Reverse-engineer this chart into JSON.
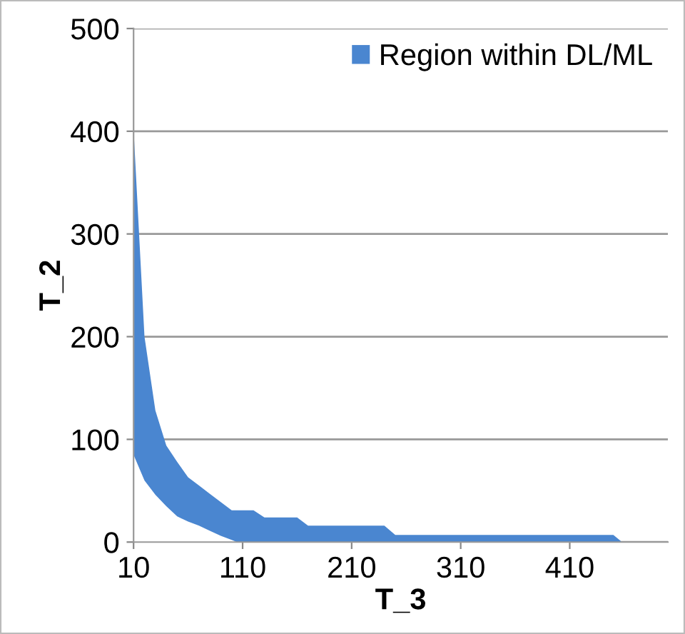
{
  "chart_data": {
    "type": "area",
    "stacked": true,
    "xlabel": "T_3",
    "ylabel": "T_2",
    "x": [
      10,
      20,
      30,
      40,
      50,
      60,
      70,
      80,
      90,
      100,
      105,
      110,
      120,
      130,
      160,
      170,
      240,
      250,
      450,
      458
    ],
    "series": [
      {
        "color": "#ffffff",
        "values": [
          85,
          60,
          46,
          35,
          25,
          20,
          16,
          11,
          6,
          2,
          0,
          0,
          0,
          0,
          0,
          0,
          0,
          0,
          0,
          0
        ]
      },
      {
        "name": "Region within DL/ML",
        "color": "#4a86d0",
        "values": [
          317,
          140,
          82,
          59,
          53,
          43,
          39,
          36,
          33,
          29,
          31,
          31,
          31,
          24,
          24,
          16,
          16,
          7,
          7,
          0
        ]
      }
    ],
    "xlim": [
      10,
      500
    ],
    "ylim": [
      0,
      500
    ],
    "xticks": [
      10,
      110,
      210,
      310,
      410
    ],
    "yticks": [
      0,
      100,
      200,
      300,
      400,
      500
    ],
    "grid": "y",
    "legend": "top right"
  }
}
